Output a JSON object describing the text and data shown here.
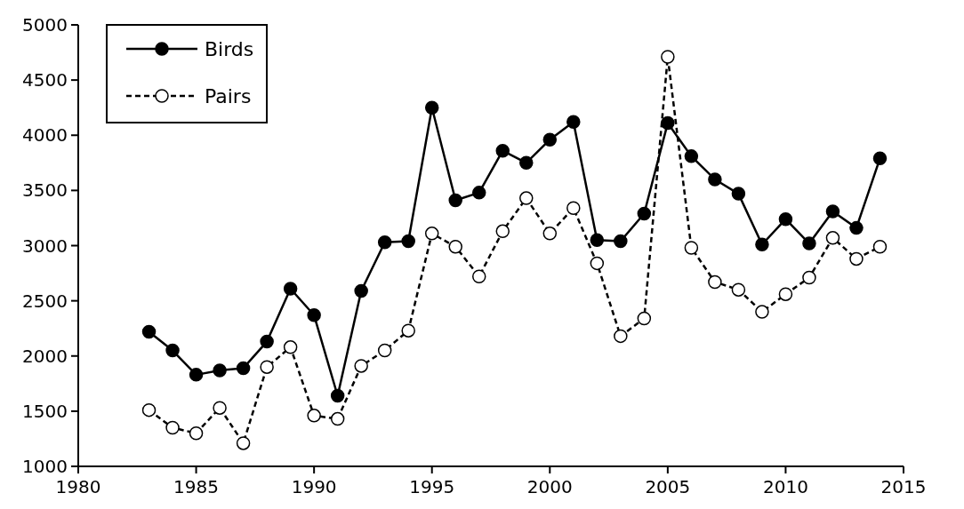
{
  "chart_data": {
    "type": "line",
    "x": [
      1983,
      1984,
      1985,
      1986,
      1987,
      1988,
      1989,
      1990,
      1991,
      1992,
      1993,
      1994,
      1995,
      1996,
      1997,
      1998,
      1999,
      2000,
      2001,
      2002,
      2003,
      2004,
      2005,
      2006,
      2007,
      2008,
      2009,
      2010,
      2011,
      2012,
      2013,
      2014
    ],
    "series": [
      {
        "name": "Birds",
        "color": "#000000",
        "marker": "circle",
        "line_style": "solid",
        "values": [
          2220,
          2050,
          1830,
          1870,
          1890,
          2130,
          2610,
          2370,
          1640,
          2590,
          3030,
          3040,
          4250,
          3410,
          3480,
          3860,
          3750,
          3960,
          4120,
          3050,
          3040,
          3290,
          4110,
          3810,
          3600,
          3470,
          3010,
          3240,
          3020,
          3310,
          3160,
          3790
        ]
      },
      {
        "name": "Pairs",
        "color": "#000000",
        "marker": "circle",
        "line_style": "dashed",
        "values": [
          1510,
          1350,
          1300,
          1530,
          1210,
          1900,
          2080,
          1460,
          1430,
          1910,
          2050,
          2230,
          3110,
          2990,
          2720,
          3130,
          3430,
          3110,
          3340,
          2840,
          2180,
          2340,
          4710,
          2980,
          2670,
          2600,
          2400,
          2560,
          2710,
          3070,
          2880,
          2990
        ]
      }
    ],
    "xlim": [
      1980,
      2015
    ],
    "xticks": [
      1980,
      1985,
      1990,
      1995,
      2000,
      2005,
      2010,
      2015
    ],
    "ylim": [
      1000,
      5000
    ],
    "yticks": [
      1000,
      1500,
      2000,
      2500,
      3000,
      3500,
      4000,
      4500,
      5000
    ],
    "grid": false,
    "legend": "top left"
  }
}
